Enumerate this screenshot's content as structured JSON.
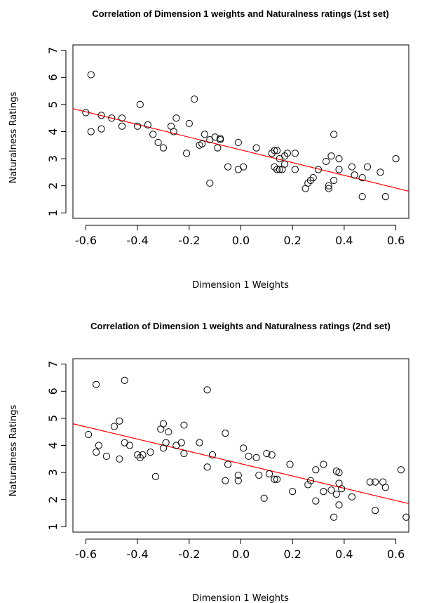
{
  "chart_data": [
    {
      "type": "scatter",
      "title": "Correlation of Dimension 1 weights and Naturalness ratings (1st set)",
      "xlabel": "Dimension 1 Weights",
      "ylabel": "Naturalness Ratings",
      "xlim": [
        -0.65,
        0.65
      ],
      "ylim": [
        0.8,
        7.2
      ],
      "xticks": [
        -0.6,
        -0.4,
        -0.2,
        0.0,
        0.2,
        0.4,
        0.6
      ],
      "xtick_labels": [
        "-0.6",
        "-0.4",
        "-0.2",
        "0.0",
        "0.2",
        "0.4",
        "0.6"
      ],
      "yticks": [
        1,
        2,
        3,
        4,
        5,
        6,
        7
      ],
      "ytick_labels": [
        "1",
        "2",
        "3",
        "4",
        "5",
        "6",
        "7"
      ],
      "fit_line": {
        "x": [
          -0.65,
          0.65
        ],
        "y": [
          4.85,
          1.8
        ],
        "color": "#ff0000"
      },
      "points": [
        [
          -0.6,
          4.7
        ],
        [
          -0.58,
          6.1
        ],
        [
          -0.58,
          4.0
        ],
        [
          -0.54,
          4.1
        ],
        [
          -0.54,
          4.6
        ],
        [
          -0.5,
          4.5
        ],
        [
          -0.46,
          4.5
        ],
        [
          -0.46,
          4.2
        ],
        [
          -0.4,
          4.2
        ],
        [
          -0.39,
          5.0
        ],
        [
          -0.36,
          4.25
        ],
        [
          -0.34,
          3.9
        ],
        [
          -0.32,
          3.6
        ],
        [
          -0.3,
          3.4
        ],
        [
          -0.27,
          4.2
        ],
        [
          -0.26,
          4.0
        ],
        [
          -0.25,
          4.5
        ],
        [
          -0.21,
          3.2
        ],
        [
          -0.2,
          4.3
        ],
        [
          -0.18,
          5.2
        ],
        [
          -0.16,
          3.5
        ],
        [
          -0.15,
          3.55
        ],
        [
          -0.14,
          3.9
        ],
        [
          -0.12,
          3.7
        ],
        [
          -0.12,
          2.1
        ],
        [
          -0.1,
          3.8
        ],
        [
          -0.09,
          3.4
        ],
        [
          -0.08,
          3.7
        ],
        [
          -0.08,
          3.75
        ],
        [
          -0.05,
          2.7
        ],
        [
          -0.01,
          3.6
        ],
        [
          -0.01,
          2.6
        ],
        [
          0.01,
          2.7
        ],
        [
          0.06,
          3.4
        ],
        [
          0.12,
          3.2
        ],
        [
          0.13,
          3.3
        ],
        [
          0.13,
          2.7
        ],
        [
          0.14,
          2.6
        ],
        [
          0.14,
          3.3
        ],
        [
          0.15,
          3.0
        ],
        [
          0.15,
          2.6
        ],
        [
          0.16,
          2.6
        ],
        [
          0.17,
          2.8
        ],
        [
          0.17,
          3.1
        ],
        [
          0.18,
          3.2
        ],
        [
          0.21,
          3.2
        ],
        [
          0.21,
          2.6
        ],
        [
          0.25,
          1.9
        ],
        [
          0.26,
          2.1
        ],
        [
          0.27,
          2.2
        ],
        [
          0.28,
          2.3
        ],
        [
          0.3,
          2.6
        ],
        [
          0.33,
          2.9
        ],
        [
          0.34,
          1.9
        ],
        [
          0.34,
          2.0
        ],
        [
          0.35,
          3.1
        ],
        [
          0.36,
          2.2
        ],
        [
          0.36,
          3.9
        ],
        [
          0.38,
          3.0
        ],
        [
          0.38,
          2.6
        ],
        [
          0.43,
          2.7
        ],
        [
          0.44,
          2.4
        ],
        [
          0.47,
          2.3
        ],
        [
          0.47,
          1.6
        ],
        [
          0.49,
          2.7
        ],
        [
          0.54,
          2.5
        ],
        [
          0.56,
          1.6
        ],
        [
          0.6,
          3.0
        ]
      ]
    },
    {
      "type": "scatter",
      "title": "Correlation of Dimension 1 weights and Naturalness ratings (2nd set)",
      "xlabel": "Dimension 1 Weights",
      "ylabel": "Naturalness Ratings",
      "xlim": [
        -0.65,
        0.65
      ],
      "ylim": [
        0.8,
        7.2
      ],
      "xticks": [
        -0.6,
        -0.4,
        -0.2,
        0.0,
        0.2,
        0.4,
        0.6
      ],
      "xtick_labels": [
        "-0.6",
        "-0.4",
        "-0.2",
        "0.0",
        "0.2",
        "0.4",
        "0.6"
      ],
      "yticks": [
        1,
        2,
        3,
        4,
        5,
        6,
        7
      ],
      "ytick_labels": [
        "1",
        "2",
        "3",
        "4",
        "5",
        "6",
        "7"
      ],
      "fit_line": {
        "x": [
          -0.65,
          0.65
        ],
        "y": [
          4.8,
          1.85
        ],
        "color": "#ff0000"
      },
      "points": [
        [
          -0.59,
          4.4
        ],
        [
          -0.56,
          6.25
        ],
        [
          -0.56,
          3.75
        ],
        [
          -0.55,
          4.0
        ],
        [
          -0.52,
          3.6
        ],
        [
          -0.49,
          4.7
        ],
        [
          -0.47,
          4.9
        ],
        [
          -0.47,
          3.5
        ],
        [
          -0.45,
          6.4
        ],
        [
          -0.45,
          4.1
        ],
        [
          -0.43,
          4.0
        ],
        [
          -0.4,
          3.65
        ],
        [
          -0.39,
          3.55
        ],
        [
          -0.38,
          3.65
        ],
        [
          -0.35,
          3.75
        ],
        [
          -0.33,
          2.85
        ],
        [
          -0.31,
          4.6
        ],
        [
          -0.3,
          4.8
        ],
        [
          -0.3,
          3.9
        ],
        [
          -0.29,
          4.1
        ],
        [
          -0.28,
          4.5
        ],
        [
          -0.25,
          4.0
        ],
        [
          -0.23,
          4.1
        ],
        [
          -0.22,
          3.7
        ],
        [
          -0.22,
          4.75
        ],
        [
          -0.16,
          4.1
        ],
        [
          -0.13,
          6.05
        ],
        [
          -0.13,
          3.2
        ],
        [
          -0.11,
          3.65
        ],
        [
          -0.06,
          4.45
        ],
        [
          -0.06,
          2.7
        ],
        [
          -0.05,
          3.3
        ],
        [
          -0.01,
          2.9
        ],
        [
          -0.01,
          2.7
        ],
        [
          0.01,
          3.9
        ],
        [
          0.03,
          3.6
        ],
        [
          0.06,
          3.55
        ],
        [
          0.07,
          2.9
        ],
        [
          0.09,
          2.05
        ],
        [
          0.1,
          3.7
        ],
        [
          0.11,
          2.95
        ],
        [
          0.12,
          3.65
        ],
        [
          0.13,
          2.75
        ],
        [
          0.14,
          2.75
        ],
        [
          0.19,
          3.3
        ],
        [
          0.2,
          2.3
        ],
        [
          0.26,
          2.55
        ],
        [
          0.27,
          2.7
        ],
        [
          0.29,
          3.1
        ],
        [
          0.29,
          1.95
        ],
        [
          0.32,
          3.3
        ],
        [
          0.32,
          2.3
        ],
        [
          0.35,
          2.35
        ],
        [
          0.36,
          1.35
        ],
        [
          0.37,
          2.2
        ],
        [
          0.37,
          3.05
        ],
        [
          0.38,
          3.0
        ],
        [
          0.38,
          1.8
        ],
        [
          0.38,
          2.6
        ],
        [
          0.39,
          2.4
        ],
        [
          0.43,
          2.1
        ],
        [
          0.5,
          2.65
        ],
        [
          0.52,
          2.65
        ],
        [
          0.52,
          1.6
        ],
        [
          0.55,
          2.65
        ],
        [
          0.56,
          2.45
        ],
        [
          0.62,
          3.1
        ],
        [
          0.64,
          1.35
        ]
      ]
    }
  ]
}
